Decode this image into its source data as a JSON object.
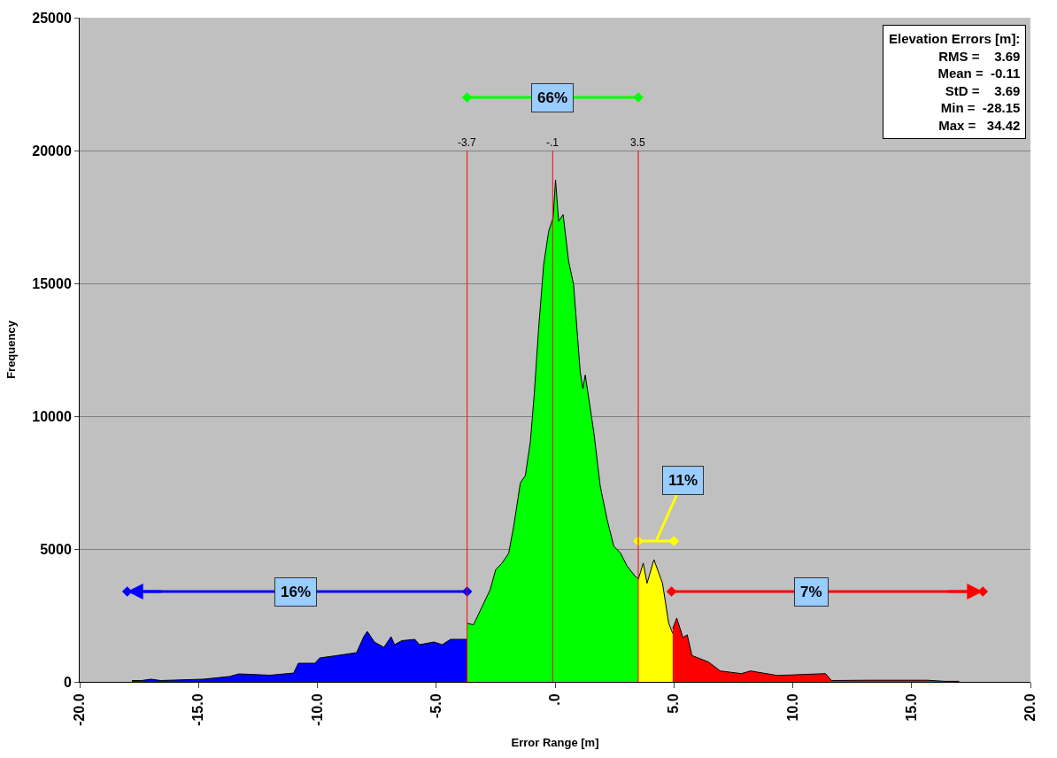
{
  "chart_data": {
    "type": "area",
    "xlabel": "Error Range [m]",
    "ylabel": "Frequency",
    "xlim": [
      -20,
      20
    ],
    "xticks": [
      {
        "value": -20,
        "label": "-20.0"
      },
      {
        "value": -15,
        "label": "-15.0"
      },
      {
        "value": -10,
        "label": "-10.0"
      },
      {
        "value": -5,
        "label": "-5.0"
      },
      {
        "value": 0,
        "label": ".0"
      },
      {
        "value": 5,
        "label": "5.0"
      },
      {
        "value": 10,
        "label": "10.0"
      },
      {
        "value": 15,
        "label": "15.0"
      },
      {
        "value": 20,
        "label": "20.0"
      }
    ],
    "ylim": [
      0,
      25000
    ],
    "yticks": [
      0,
      5000,
      10000,
      15000,
      20000,
      25000
    ],
    "grid": "y",
    "series": [
      {
        "color": "#0000ff",
        "x": [
          -17.8,
          -17.4,
          -17.0,
          -16.6,
          -14.8,
          -13.7,
          -13.3,
          -12.0,
          -11.0,
          -10.8,
          -10.1,
          -9.9,
          -9.1,
          -8.35,
          -8.05,
          -7.9,
          -7.6,
          -7.2,
          -6.9,
          -6.75,
          -6.45,
          -5.9,
          -5.7,
          -5.1,
          -4.75,
          -4.4,
          -3.7
        ],
        "values": [
          50,
          50,
          100,
          50,
          100,
          200,
          300,
          250,
          330,
          700,
          700,
          900,
          1000,
          1100,
          1700,
          1900,
          1500,
          1300,
          1700,
          1400,
          1550,
          1600,
          1400,
          1500,
          1400,
          1600,
          1600
        ]
      },
      {
        "color": "#00ff00",
        "x": [
          -3.7,
          -3.43,
          -3.07,
          -2.73,
          -2.5,
          -2.24,
          -1.95,
          -1.74,
          -1.46,
          -1.25,
          -1.04,
          -0.87,
          -0.69,
          -0.48,
          -0.27,
          -0.08,
          0.02,
          0.15,
          0.34,
          0.57,
          0.78,
          1.06,
          1.17,
          1.27,
          1.63,
          1.9,
          2.19,
          2.47,
          2.75,
          3.03,
          3.38,
          3.5
        ],
        "values": [
          2200,
          2150,
          2830,
          3470,
          4220,
          4460,
          4840,
          5860,
          7490,
          7770,
          9030,
          10900,
          13320,
          15700,
          16960,
          17470,
          18900,
          17340,
          17590,
          15840,
          14950,
          11650,
          11040,
          11550,
          9400,
          7370,
          6110,
          5110,
          4850,
          4360,
          3960,
          3900
        ]
      },
      {
        "color": "#ffff00",
        "x": [
          3.5,
          3.71,
          3.87,
          4.16,
          4.52,
          4.78,
          4.95
        ],
        "values": [
          3850,
          4470,
          3710,
          4600,
          3710,
          2210,
          1820
        ]
      },
      {
        "color": "#ff0000",
        "x": [
          4.95,
          5.12,
          5.38,
          5.56,
          5.76,
          6.45,
          6.95,
          7.84,
          8.22,
          9.36,
          11.38,
          11.63,
          13.15,
          15.67,
          16.4,
          17.0
        ],
        "values": [
          2000,
          2400,
          1670,
          1770,
          990,
          750,
          410,
          310,
          410,
          240,
          310,
          50,
          60,
          60,
          20,
          20
        ]
      }
    ],
    "ref_lines": [
      {
        "axis": "x",
        "value": -3.7,
        "label": "-3.7",
        "color": "#ff0000"
      },
      {
        "axis": "x",
        "value": -0.1,
        "label": "-.1",
        "color": "#ff0000"
      },
      {
        "axis": "x",
        "value": 3.5,
        "label": "3.5",
        "color": "#ff0000"
      }
    ],
    "annotations": [
      "66%",
      "16%",
      "11%",
      "7%",
      "Elevation Errors [m]:\nRMS =    3.69\nMean =  -0.11\nStD =    3.69\nMin =  -28.15\nMax =   34.42"
    ]
  }
}
